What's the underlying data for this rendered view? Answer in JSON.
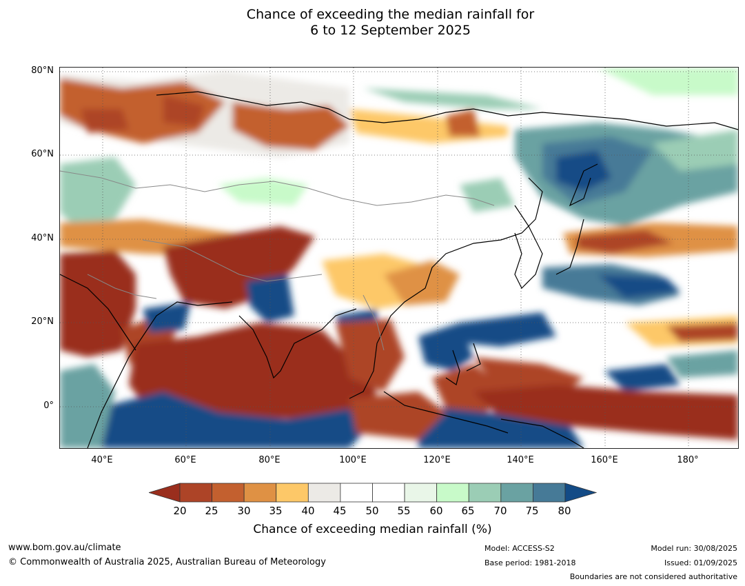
{
  "title": {
    "line1": "Chance of exceeding the median rainfall for",
    "line2": "6 to 12 September 2025"
  },
  "map": {
    "lat_labels": [
      "80°N",
      "60°N",
      "40°N",
      "20°N",
      "0°"
    ],
    "lon_labels": [
      "40°E",
      "60°E",
      "80°E",
      "100°E",
      "120°E",
      "140°E",
      "160°E",
      "180°"
    ]
  },
  "colorbar": {
    "ticks": [
      "20",
      "25",
      "30",
      "35",
      "40",
      "45",
      "50",
      "55",
      "60",
      "65",
      "70",
      "75",
      "80"
    ],
    "colors": [
      "#9a2e1d",
      "#ad4427",
      "#c3602f",
      "#df9144",
      "#fdc868",
      "#eceae6",
      "#ffffff",
      "#ffffff",
      "#e9f6e8",
      "#c8fac9",
      "#9bcdb5",
      "#6aa2a2",
      "#467a97",
      "#134b86"
    ],
    "label": "Chance of exceeding median rainfall (%)"
  },
  "footer": {
    "website": "www.bom.gov.au/climate",
    "copyright": "© Commonwealth of Australia 2025, Australian Bureau of Meteorology",
    "model": "Model: ACCESS-S2",
    "base_period": "Base period: 1981-2018",
    "model_run": "Model run: 30/08/2025",
    "issued": "Issued: 01/09/2025",
    "disclaimer": "Boundaries are not considered authoritative"
  }
}
